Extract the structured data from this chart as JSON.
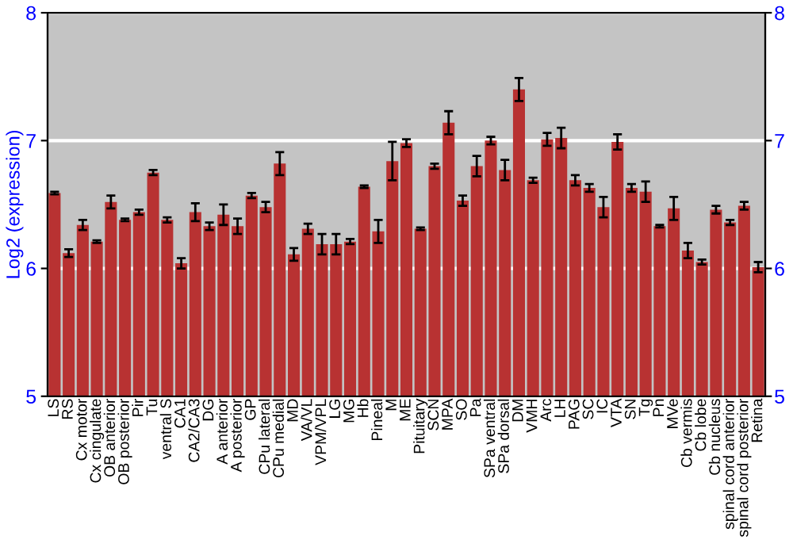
{
  "chart_data": {
    "type": "bar",
    "ylabel": "Log2 (expression)",
    "categories": [
      "LS",
      "RS",
      "Cx motor",
      "Cx cingulate",
      "OB anterior",
      "OB posterior",
      "Pir",
      "Tu",
      "ventral S",
      "CA1",
      "CA2/CA3",
      "DG",
      "A anterior",
      "A posterior",
      "GP",
      "CPu lateral",
      "CPu medial",
      "MD",
      "VA/VL",
      "VPM/VPL",
      "LG",
      "MG",
      "Hb",
      "Pineal",
      "M",
      "ME",
      "Pituitary",
      "SCN",
      "MPA",
      "SO",
      "Pa",
      "SPa ventral",
      "SPa dorsal",
      "DM",
      "VMH",
      "Arc",
      "LH",
      "PAG",
      "SC",
      "IC",
      "VTA",
      "SN",
      "Tg",
      "Pn",
      "MVe",
      "Cb vermis",
      "Cb lobe",
      "Cb nucleus",
      "spinal cord anterior",
      "spinal cord posterior",
      "Retina"
    ],
    "values": [
      6.59,
      6.12,
      6.34,
      6.21,
      6.52,
      6.38,
      6.44,
      6.75,
      6.38,
      6.04,
      6.44,
      6.33,
      6.42,
      6.33,
      6.57,
      6.48,
      6.82,
      6.11,
      6.31,
      6.19,
      6.19,
      6.21,
      6.64,
      6.29,
      6.84,
      6.98,
      6.31,
      6.8,
      7.14,
      6.53,
      6.8,
      7.0,
      6.77,
      7.4,
      6.69,
      7.01,
      7.02,
      6.69,
      6.63,
      6.48,
      6.99,
      6.63,
      6.6,
      6.33,
      6.47,
      6.14,
      6.05,
      6.46,
      6.36,
      6.49,
      6.01
    ],
    "errors": [
      0.01,
      0.03,
      0.04,
      0.01,
      0.05,
      0.01,
      0.02,
      0.02,
      0.02,
      0.04,
      0.07,
      0.03,
      0.08,
      0.06,
      0.02,
      0.04,
      0.09,
      0.05,
      0.04,
      0.08,
      0.08,
      0.02,
      0.01,
      0.09,
      0.15,
      0.03,
      0.01,
      0.02,
      0.09,
      0.04,
      0.08,
      0.03,
      0.08,
      0.09,
      0.02,
      0.05,
      0.08,
      0.04,
      0.03,
      0.08,
      0.06,
      0.03,
      0.08,
      0.01,
      0.09,
      0.06,
      0.02,
      0.03,
      0.02,
      0.03,
      0.04
    ],
    "color": "#b83232",
    "ylim": [
      5,
      8
    ],
    "yticks": [
      5,
      6,
      7,
      8
    ],
    "y2lim": [
      5,
      8
    ],
    "y2ticks": [
      5,
      6,
      7,
      8
    ],
    "grid": "y"
  }
}
